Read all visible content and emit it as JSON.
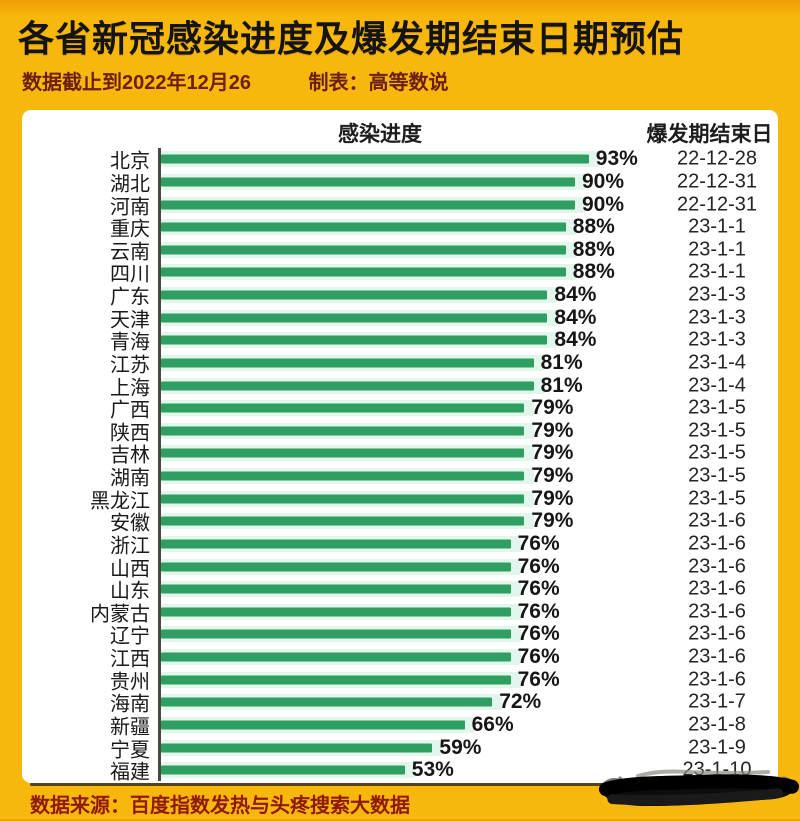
{
  "header": {
    "title": "各省新冠感染进度及爆发期结束日期预估",
    "data_cutoff": "数据截止到2022年12月26",
    "credit": "制表：高等数说"
  },
  "columns": {
    "progress_header": "感染进度",
    "date_header": "爆发期结束日"
  },
  "footer": {
    "source": "数据来源：百度指数发热与头疼搜索大数据"
  },
  "colors": {
    "background_yellow": "#f8b70c",
    "bar_green": "#2e9e61",
    "track_mint": "#e2f6ec",
    "subtitle_maroon": "#6b2012",
    "footer_red": "#8e1a06",
    "title_black": "#141414"
  },
  "chart_data": {
    "type": "bar",
    "orientation": "horizontal",
    "title": "各省新冠感染进度及爆发期结束日期预估",
    "xlabel": "感染进度",
    "value_unit": "%",
    "xlim": [
      0,
      100
    ],
    "grid": false,
    "legend": "none",
    "categories": [
      "北京",
      "湖北",
      "河南",
      "重庆",
      "云南",
      "四川",
      "广东",
      "天津",
      "青海",
      "江苏",
      "上海",
      "广西",
      "陕西",
      "吉林",
      "湖南",
      "黑龙江",
      "安徽",
      "浙江",
      "山西",
      "山东",
      "内蒙古",
      "辽宁",
      "江西",
      "贵州",
      "海南",
      "新疆",
      "宁夏",
      "福建"
    ],
    "values": [
      93,
      90,
      90,
      88,
      88,
      88,
      84,
      84,
      84,
      81,
      81,
      79,
      79,
      79,
      79,
      79,
      79,
      76,
      76,
      76,
      76,
      76,
      76,
      76,
      72,
      66,
      59,
      53
    ],
    "value_labels": [
      "93%",
      "90%",
      "90%",
      "88%",
      "88%",
      "88%",
      "84%",
      "84%",
      "84%",
      "81%",
      "81%",
      "79%",
      "79%",
      "79%",
      "79%",
      "79%",
      "79%",
      "76%",
      "76%",
      "76%",
      "76%",
      "76%",
      "76%",
      "76%",
      "72%",
      "66%",
      "59%",
      "53%"
    ],
    "end_dates": [
      "22-12-28",
      "22-12-31",
      "22-12-31",
      "23-1-1",
      "23-1-1",
      "23-1-1",
      "23-1-3",
      "23-1-3",
      "23-1-3",
      "23-1-4",
      "23-1-4",
      "23-1-5",
      "23-1-5",
      "23-1-5",
      "23-1-5",
      "23-1-5",
      "23-1-6",
      "23-1-6",
      "23-1-6",
      "23-1-6",
      "23-1-6",
      "23-1-6",
      "23-1-6",
      "23-1-6",
      "23-1-7",
      "23-1-8",
      "23-1-9",
      "23-1-10"
    ]
  }
}
